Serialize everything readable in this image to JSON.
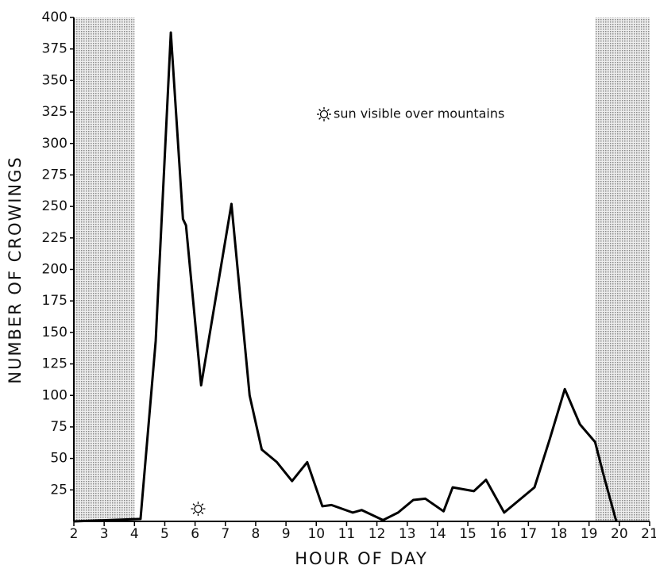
{
  "chart_data": {
    "type": "line",
    "xlabel": "HOUR OF DAY",
    "ylabel": "NUMBER OF CROWINGS",
    "annotation": "sun visible over mountains",
    "sun_marker": {
      "x": 6.1,
      "y": 10
    },
    "shaded_x_ranges": [
      [
        2,
        4
      ],
      [
        19.2,
        21
      ]
    ],
    "x": [
      2,
      4.2,
      4.7,
      5.2,
      5.6,
      5.7,
      6.2,
      7.2,
      7.8,
      8.2,
      8.7,
      9.2,
      9.7,
      10.2,
      10.5,
      11.2,
      11.5,
      12.2,
      12.7,
      13.2,
      13.6,
      14.2,
      14.5,
      15.2,
      15.6,
      16.2,
      16.7,
      17.2,
      17.7,
      18.2,
      18.7,
      19.2,
      19.5,
      19.9
    ],
    "series": [
      {
        "color": "#000000",
        "values": [
          0,
          2,
          143,
          388,
          240,
          235,
          108,
          252,
          100,
          57,
          47,
          32,
          47,
          12,
          13,
          7,
          9,
          1,
          7,
          17,
          18,
          8,
          27,
          24,
          33,
          7,
          17,
          27,
          65,
          105,
          77,
          63,
          35,
          0
        ]
      }
    ],
    "xlim": [
      2,
      21
    ],
    "xticks": [
      2,
      3,
      4,
      5,
      6,
      7,
      8,
      9,
      10,
      11,
      12,
      13,
      14,
      15,
      16,
      17,
      18,
      19,
      20,
      21
    ],
    "ylim": [
      0,
      400
    ],
    "yticks": [
      25,
      50,
      75,
      100,
      125,
      150,
      175,
      200,
      225,
      250,
      275,
      300,
      325,
      350,
      375,
      400
    ],
    "grid": false
  }
}
